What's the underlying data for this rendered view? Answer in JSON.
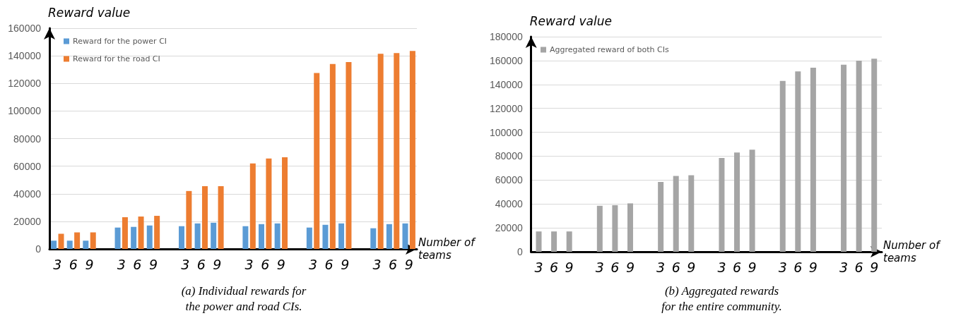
{
  "chart_data": [
    {
      "type": "bar",
      "title": "(a) Individual rewards for\nthe power and road CIs.",
      "ylabel": "Reward value",
      "xlabel": "Number of\nteams",
      "categories": [
        "3",
        "6",
        "9",
        null,
        "3",
        "6",
        "9",
        null,
        "3",
        "6",
        "9",
        null,
        "3",
        "6",
        "9",
        null,
        "3",
        "6",
        "9",
        null,
        "3",
        "6",
        "9"
      ],
      "series": [
        {
          "name": "Reward for the power CI",
          "color": "#5b9bd5",
          "values": [
            6000,
            6000,
            6000,
            null,
            15500,
            16000,
            17000,
            null,
            16500,
            18500,
            19000,
            null,
            16500,
            18000,
            18500,
            null,
            15500,
            17500,
            18500,
            null,
            15000,
            18000,
            18500
          ]
        },
        {
          "name": "Reward for the road CI",
          "color": "#ed7d31",
          "values": [
            11000,
            12000,
            12000,
            null,
            23000,
            23500,
            24000,
            null,
            42000,
            45500,
            45500,
            null,
            62000,
            65500,
            66500,
            null,
            127500,
            134000,
            135500,
            null,
            141500,
            142000,
            143500
          ]
        }
      ],
      "ylim": [
        0,
        160000
      ],
      "yticks": [
        0,
        20000,
        40000,
        60000,
        80000,
        100000,
        120000,
        140000,
        160000
      ],
      "grid": "y",
      "legend": "top left"
    },
    {
      "type": "bar",
      "title": "(b) Aggregated rewards\nfor the entire community.",
      "ylabel": "Reward value",
      "xlabel": "Number of\nteams",
      "categories": [
        "3",
        "6",
        "9",
        null,
        "3",
        "6",
        "9",
        null,
        "3",
        "6",
        "9",
        null,
        "3",
        "6",
        "9",
        null,
        "3",
        "6",
        "9",
        null,
        "3",
        "6",
        "9"
      ],
      "series": [
        {
          "name": "Aggregated reward of both CIs",
          "color": "#a5a5a5",
          "values": [
            17000,
            17000,
            17000,
            null,
            38500,
            39000,
            40500,
            null,
            58500,
            63500,
            64000,
            null,
            78500,
            83000,
            85500,
            null,
            143000,
            151000,
            154000,
            null,
            156500,
            160000,
            161500
          ]
        }
      ],
      "ylim": [
        0,
        180000
      ],
      "yticks": [
        0,
        20000,
        40000,
        60000,
        80000,
        100000,
        120000,
        140000,
        160000,
        180000
      ],
      "grid": "y",
      "legend": "top left"
    }
  ]
}
